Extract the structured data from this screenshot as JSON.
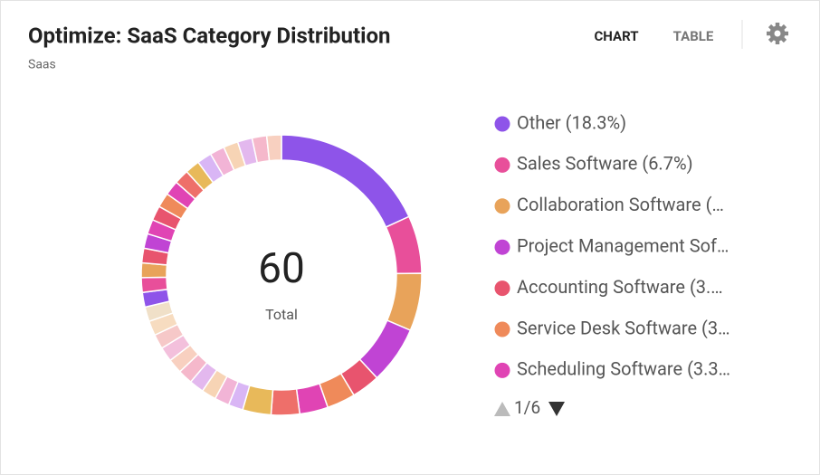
{
  "header": {
    "title": "Optimize: SaaS Category Distribution",
    "subtitle": "Saas",
    "tabs": [
      "CHART",
      "TABLE"
    ]
  },
  "chart_data": {
    "type": "donut",
    "categories": [
      "Other (18.3%)",
      "Sales Software (6.7%)",
      "Collaboration Software (…",
      "Project Management Sof…",
      "Accounting Software (3.…",
      "Service Desk Software (3…",
      "Scheduling Software (3.3…",
      null,
      null,
      null,
      null,
      null,
      null,
      null,
      null,
      null,
      null,
      null,
      null,
      null,
      null,
      null,
      null,
      null,
      null,
      null,
      null,
      null,
      null,
      null,
      null,
      null,
      null,
      null,
      null,
      null
    ],
    "values": [
      18.3,
      6.7,
      6.7,
      6.7,
      3.3,
      3.3,
      3.3,
      3.3,
      3.3,
      1.7,
      1.7,
      1.7,
      1.7,
      1.7,
      1.7,
      1.7,
      1.7,
      1.7,
      1.7,
      1.7,
      1.7,
      1.7,
      1.7,
      1.7,
      1.7,
      1.7,
      1.7,
      1.7,
      1.7,
      1.7,
      1.7,
      1.7,
      1.7,
      1.7,
      1.7,
      1.7
    ],
    "colors": [
      "#8e54e9",
      "#e84f9a",
      "#e8a35a",
      "#c044d4",
      "#e8546e",
      "#ef8a5a",
      "#e044b4",
      "#ee6f6a",
      "#e8b95a",
      "#d9b6f5",
      "#f2b4d6",
      "#f7d4b5",
      "#e3b8ee",
      "#f5b8cb",
      "#f8d0c0",
      "#f3c0dc",
      "#f6c8c8",
      "#f7dcc0",
      "#f0e0c8",
      "#8e54e9",
      "#e84f9a",
      "#e8a35a",
      "#e8546e",
      "#c044d4",
      "#e044b4",
      "#e8546e",
      "#ef8a5a",
      "#e044b4",
      "#ee6f6a",
      "#e8b95a",
      "#d9b6f5",
      "#f2b4d6",
      "#f7d4b5",
      "#e3b8ee",
      "#f5b8cb",
      "#f8d0c0"
    ],
    "total": 60,
    "total_label": "Total",
    "page": "1/6"
  }
}
